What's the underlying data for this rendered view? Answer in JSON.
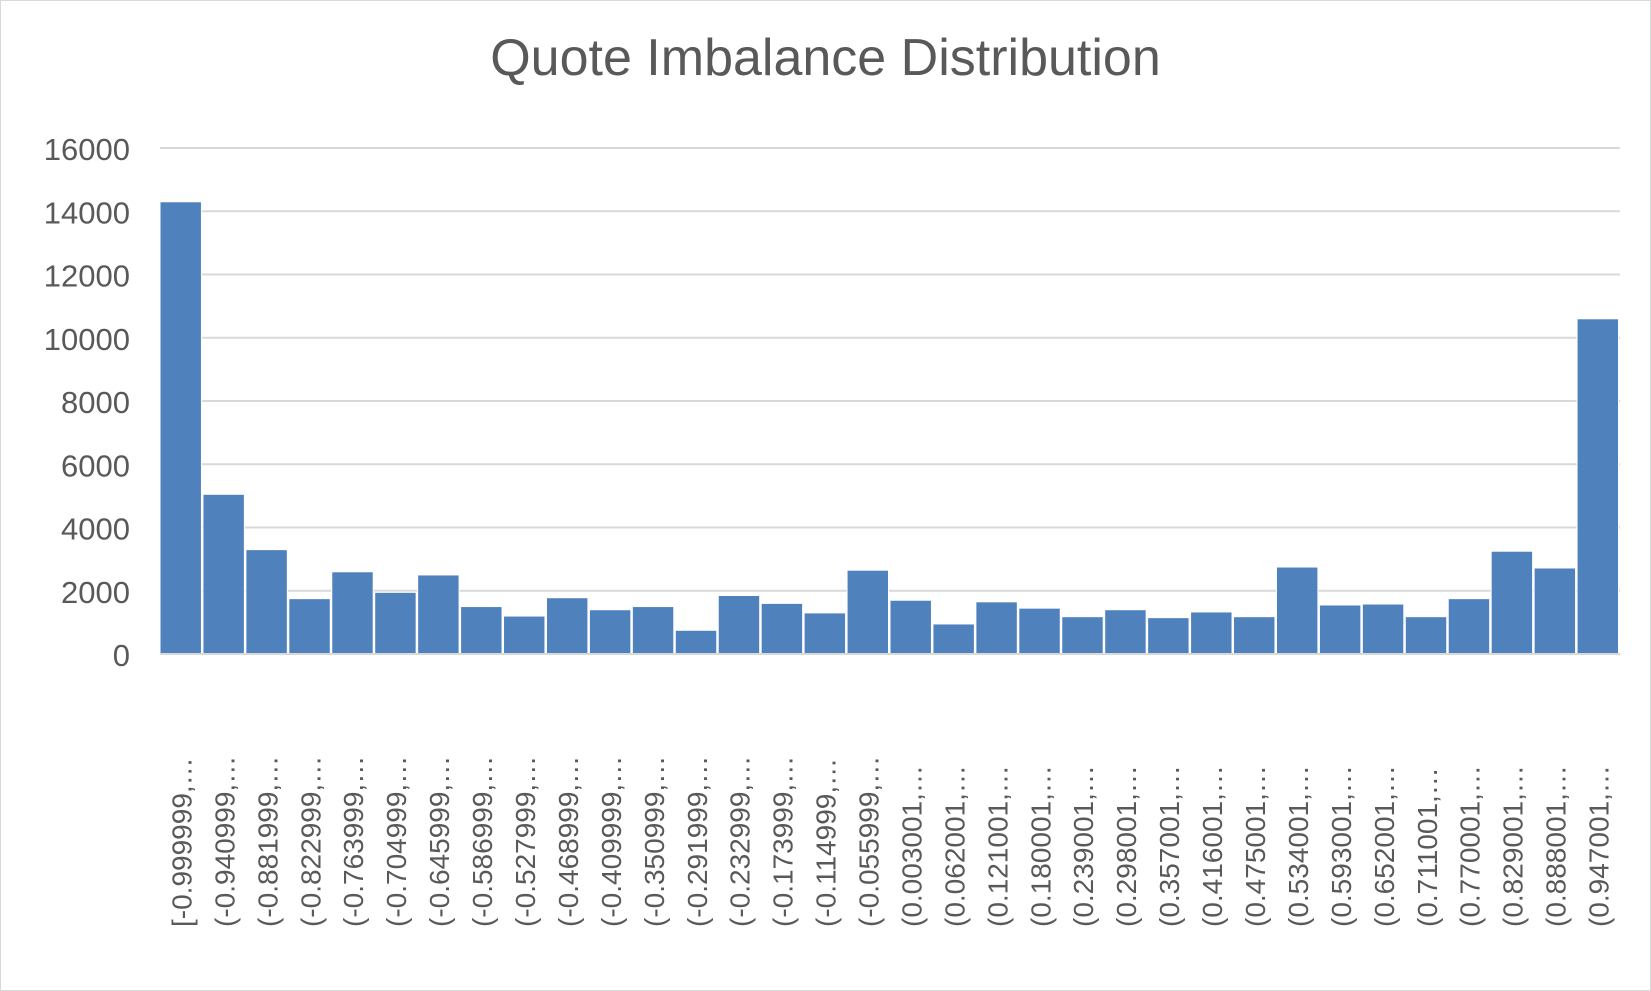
{
  "chart_data": {
    "type": "bar",
    "title": "Quote Imbalance Distribution",
    "xlabel": "",
    "ylabel": "",
    "ylim": [
      0,
      16000
    ],
    "yticks": [
      0,
      2000,
      4000,
      6000,
      8000,
      10000,
      12000,
      14000,
      16000
    ],
    "grid": true,
    "legend": "none",
    "bar_color": "#4f81bd",
    "categories": [
      "[-0.999999,…",
      "(-0.940999,…",
      "(-0.881999,…",
      "(-0.822999,…",
      "(-0.763999,…",
      "(-0.704999,…",
      "(-0.645999,…",
      "(-0.586999,…",
      "(-0.527999,…",
      "(-0.468999,…",
      "(-0.409999,…",
      "(-0.350999,…",
      "(-0.291999,…",
      "(-0.232999,…",
      "(-0.173999,…",
      "(-0.114999,…",
      "(-0.055999,…",
      "(0.003001,…",
      "(0.062001,…",
      "(0.121001,…",
      "(0.180001,…",
      "(0.239001,…",
      "(0.298001,…",
      "(0.357001,…",
      "(0.416001,…",
      "(0.475001,…",
      "(0.534001,…",
      "(0.593001,…",
      "(0.652001,…",
      "(0.711001,…",
      "(0.770001,…",
      "(0.829001,…",
      "(0.888001,…",
      "(0.947001,…"
    ],
    "values": [
      14300,
      5050,
      3300,
      1750,
      2600,
      1950,
      2500,
      1500,
      1200,
      1780,
      1400,
      1500,
      750,
      1850,
      1600,
      1300,
      2650,
      1700,
      950,
      1650,
      1450,
      1180,
      1400,
      1150,
      1330,
      1180,
      2750,
      1550,
      1580,
      1180,
      1750,
      3250,
      2720,
      10600
    ]
  }
}
